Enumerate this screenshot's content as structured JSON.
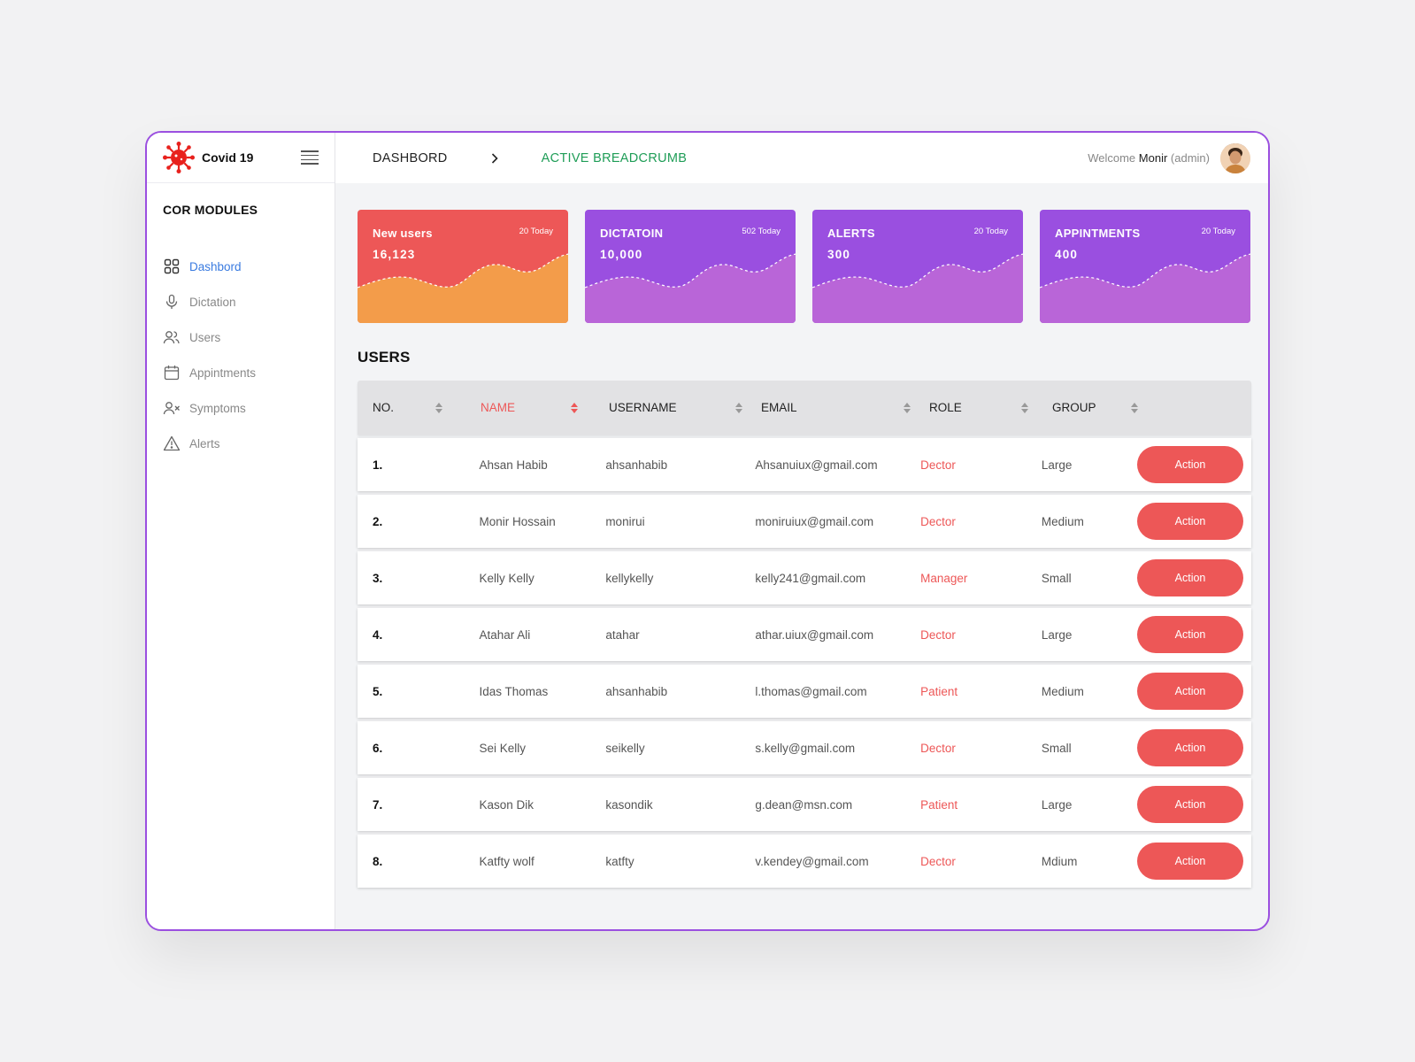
{
  "app": {
    "name": "Covid 19",
    "section_title": "COR MODULES"
  },
  "colors": {
    "accent_red": "#ed5757",
    "accent_purple": "#9a4fe0",
    "active_nav": "#3a7be0",
    "active_breadcrumb": "#1f9d57",
    "window_border": "#9b4fe0"
  },
  "sidebar": {
    "items": [
      {
        "label": "Dashbord",
        "icon": "grid-icon",
        "active": true
      },
      {
        "label": "Dictation",
        "icon": "microphone-icon",
        "active": false
      },
      {
        "label": "Users",
        "icon": "users-icon",
        "active": false
      },
      {
        "label": "Appintments",
        "icon": "calendar-icon",
        "active": false
      },
      {
        "label": "Symptoms",
        "icon": "user-x-icon",
        "active": false
      },
      {
        "label": "Alerts",
        "icon": "warning-icon",
        "active": false
      }
    ]
  },
  "header": {
    "breadcrumb_home": "DASHBORD",
    "breadcrumb_active": "ACTIVE BREADCRUMB",
    "welcome_prefix": "Welcome",
    "user_name": "Monir",
    "user_role": "(admin)"
  },
  "stats": [
    {
      "title": "New users",
      "value": "16,123",
      "badge": "20 Today",
      "color": "red"
    },
    {
      "title": "DICTATOIN",
      "value": "10,000",
      "badge": "502 Today",
      "color": "purple"
    },
    {
      "title": "ALERTS",
      "value": "300",
      "badge": "20 Today",
      "color": "purple"
    },
    {
      "title": "APPINTMENTS",
      "value": "400",
      "badge": "20 Today",
      "color": "purple"
    }
  ],
  "users_table": {
    "title": "USERS",
    "columns": [
      "NO.",
      "NAME",
      "USERNAME",
      "EMAIL",
      "ROLE",
      "GROUP"
    ],
    "sorted_column": "NAME",
    "action_label": "Action",
    "rows": [
      {
        "no": "1.",
        "name": "Ahsan Habib",
        "username": "ahsanhabib",
        "email": "Ahsanuiux@gmail.com",
        "role": "Dector",
        "group": "Large"
      },
      {
        "no": "2.",
        "name": "Monir Hossain",
        "username": "monirui",
        "email": "moniruiux@gmail.com",
        "role": "Dector",
        "group": "Medium"
      },
      {
        "no": "3.",
        "name": "Kelly Kelly",
        "username": "kellykelly",
        "email": "kelly241@gmail.com",
        "role": "Manager",
        "group": "Small"
      },
      {
        "no": "4.",
        "name": "Atahar Ali",
        "username": "atahar",
        "email": "athar.uiux@gmail.com",
        "role": "Dector",
        "group": "Large"
      },
      {
        "no": "5.",
        "name": "Idas Thomas",
        "username": "ahsanhabib",
        "email": "l.thomas@gmail.com",
        "role": "Patient",
        "group": "Medium"
      },
      {
        "no": "6.",
        "name": "Sei Kelly",
        "username": "seikelly",
        "email": "s.kelly@gmail.com",
        "role": "Dector",
        "group": "Small"
      },
      {
        "no": "7.",
        "name": "Kason Dik",
        "username": "kasondik",
        "email": "g.dean@msn.com",
        "role": "Patient",
        "group": "Large"
      },
      {
        "no": "8.",
        "name": "Katfty wolf",
        "username": "katfty",
        "email": "v.kendey@gmail.com",
        "role": "Dector",
        "group": "Mdium"
      }
    ]
  }
}
